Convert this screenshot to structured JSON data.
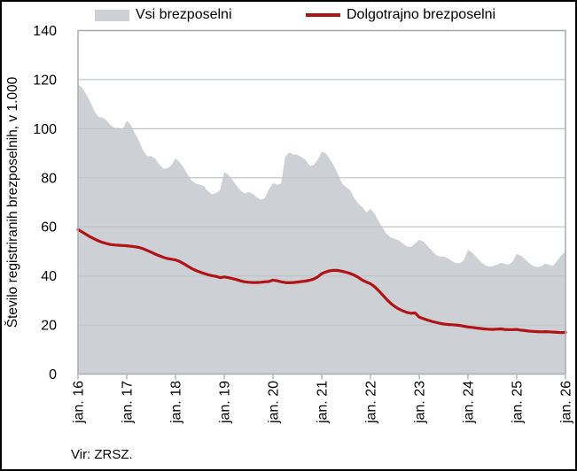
{
  "figure": {
    "legend": [
      {
        "label": "Vsi brezposelni",
        "swatch": "area"
      },
      {
        "label": "Dolgotrajno brezposelni",
        "swatch": "line"
      }
    ],
    "source": "Vir: ZRSZ."
  },
  "colors": {
    "area_fill": "#cdd1d6",
    "line": "#b01417",
    "gridline": "#c2c5c9",
    "plot_border": "#a9acb0",
    "tick": "#a9acb0",
    "text": "#000000"
  },
  "chart_data": {
    "type": "area",
    "title": "",
    "ylabel": "Število registriranih brezposelnih, v 1.000",
    "xlabel": "",
    "unit": "thousands of persons",
    "x_frequency": "monthly",
    "x_range": [
      "jan. 16",
      "jan. 26"
    ],
    "x_tick_labels": [
      "jan. 16",
      "jan. 17",
      "jan. 18",
      "jan. 19",
      "jan. 20",
      "jan. 21",
      "jan. 22",
      "jan. 23",
      "jan. 24",
      "jan. 25",
      "jan. 26"
    ],
    "y_tick_labels": [
      "0",
      "20",
      "40",
      "60",
      "80",
      "100",
      "120",
      "140"
    ],
    "ylim": [
      0,
      140
    ],
    "grid": "horizontal",
    "legend_position": "top",
    "source": "Vir: ZRSZ.",
    "series": [
      {
        "name": "Vsi brezposelni",
        "type": "area",
        "color": "#cdd1d6",
        "values": [
          118.2,
          116.6,
          114.1,
          111.0,
          107.3,
          104.9,
          104.5,
          103.4,
          101.5,
          100.3,
          100.4,
          99.6,
          103.2,
          101.5,
          98.1,
          95.0,
          91.2,
          88.9,
          88.8,
          87.8,
          85.5,
          83.7,
          83.9,
          85.1,
          88.0,
          86.3,
          84.1,
          81.3,
          78.8,
          77.6,
          77.2,
          76.6,
          74.5,
          73.2,
          73.8,
          74.9,
          82.3,
          81.3,
          79.1,
          76.9,
          74.8,
          73.7,
          74.1,
          73.5,
          72.1,
          71.0,
          71.7,
          75.3,
          77.8,
          77.2,
          77.7,
          88.6,
          90.4,
          89.5,
          89.4,
          88.5,
          87.3,
          84.9,
          85.2,
          87.3,
          90.6,
          89.9,
          87.6,
          84.9,
          81.4,
          77.7,
          76.2,
          74.9,
          71.7,
          69.5,
          68.1,
          65.9,
          67.4,
          65.4,
          62.3,
          59.6,
          57.0,
          55.6,
          55.1,
          54.5,
          53.1,
          52.0,
          51.9,
          53.2,
          54.7,
          54.0,
          52.3,
          50.5,
          48.7,
          47.9,
          47.9,
          47.2,
          46.1,
          45.2,
          45.2,
          46.4,
          50.5,
          49.5,
          47.8,
          46.0,
          44.6,
          43.8,
          44.0,
          44.4,
          45.3,
          45.0,
          44.6,
          45.8,
          49.0,
          48.3,
          46.9,
          45.3,
          44.1,
          43.6,
          43.9,
          45.0,
          44.5,
          44.2,
          46.2,
          48.5,
          50.1
        ]
      },
      {
        "name": "Dolgotrajno brezposelni",
        "type": "line",
        "color": "#b01417",
        "values": [
          58.9,
          57.9,
          56.9,
          55.9,
          55.1,
          54.3,
          53.7,
          53.2,
          52.8,
          52.6,
          52.5,
          52.4,
          52.3,
          52.1,
          51.9,
          51.6,
          51.1,
          50.4,
          49.7,
          48.9,
          48.2,
          47.6,
          47.1,
          46.8,
          46.5,
          45.9,
          45.0,
          44.0,
          43.0,
          42.2,
          41.6,
          41.0,
          40.5,
          40.1,
          39.8,
          39.3,
          39.6,
          39.3,
          38.9,
          38.5,
          38.0,
          37.6,
          37.4,
          37.3,
          37.3,
          37.4,
          37.6,
          37.7,
          38.3,
          38.0,
          37.6,
          37.3,
          37.2,
          37.3,
          37.5,
          37.7,
          37.9,
          38.2,
          38.7,
          39.6,
          40.9,
          41.6,
          42.1,
          42.3,
          42.2,
          41.9,
          41.5,
          41.0,
          40.3,
          39.4,
          38.3,
          37.5,
          36.8,
          35.6,
          34.0,
          32.2,
          30.4,
          28.8,
          27.5,
          26.5,
          25.7,
          25.1,
          24.8,
          24.9,
          23.2,
          22.6,
          22.0,
          21.5,
          21.1,
          20.7,
          20.4,
          20.2,
          20.1,
          20.0,
          19.8,
          19.5,
          19.2,
          19.0,
          18.8,
          18.6,
          18.4,
          18.3,
          18.2,
          18.3,
          18.4,
          18.2,
          18.1,
          18.1,
          18.2,
          17.9,
          17.7,
          17.5,
          17.4,
          17.3,
          17.2,
          17.3,
          17.2,
          17.1,
          17.0,
          16.9,
          17.0
        ]
      }
    ]
  }
}
